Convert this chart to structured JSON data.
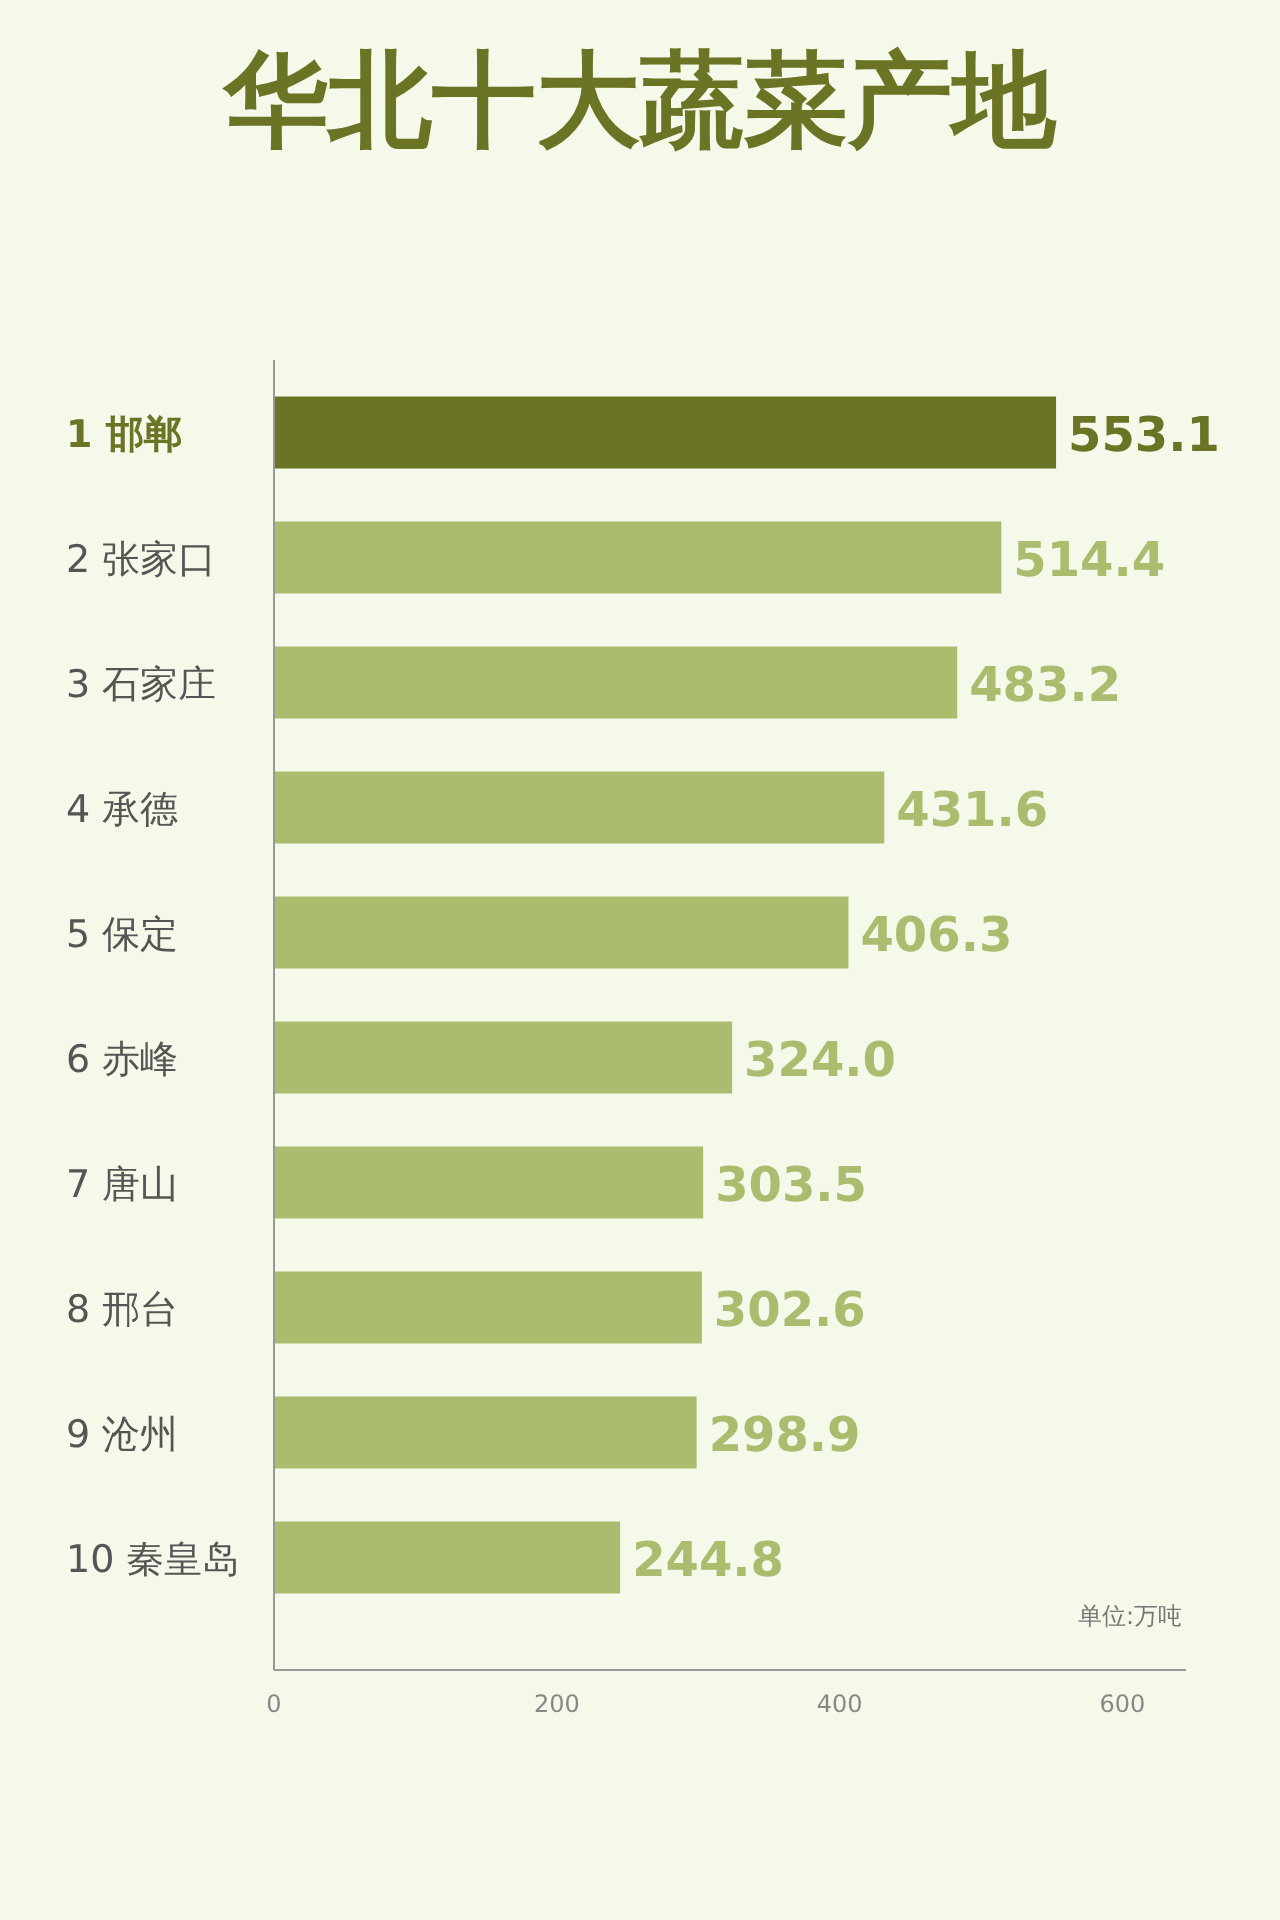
{
  "chart_data": {
    "type": "bar",
    "orientation": "horizontal",
    "title": "华北十大蔬菜产地",
    "categories": [
      "1 邯郸",
      "2 张家口",
      "3 石家庄",
      "4 承德",
      "5 保定",
      "6 赤峰",
      "7 唐山",
      "8 邢台",
      "9 沧州",
      "10 秦皇岛"
    ],
    "values": [
      553.1,
      514.4,
      483.2,
      431.6,
      406.3,
      324.0,
      303.5,
      302.6,
      298.9,
      244.8
    ],
    "colors": [
      "#6b7424",
      "#aabd6f",
      "#aabd6f",
      "#aabd6f",
      "#aabd6f",
      "#aabd6f",
      "#aabd6f",
      "#aabd6f",
      "#aabd6f",
      "#aabd6f"
    ],
    "value_labels": [
      "553.1",
      "514.4",
      "483.2",
      "431.6",
      "406.3",
      "324.0",
      "303.5",
      "302.6",
      "298.9",
      "244.8"
    ],
    "xlim": [
      0,
      645
    ],
    "xticks": [
      0,
      200,
      400,
      600
    ],
    "grid": false,
    "annotations": [
      "单位:万吨"
    ]
  }
}
